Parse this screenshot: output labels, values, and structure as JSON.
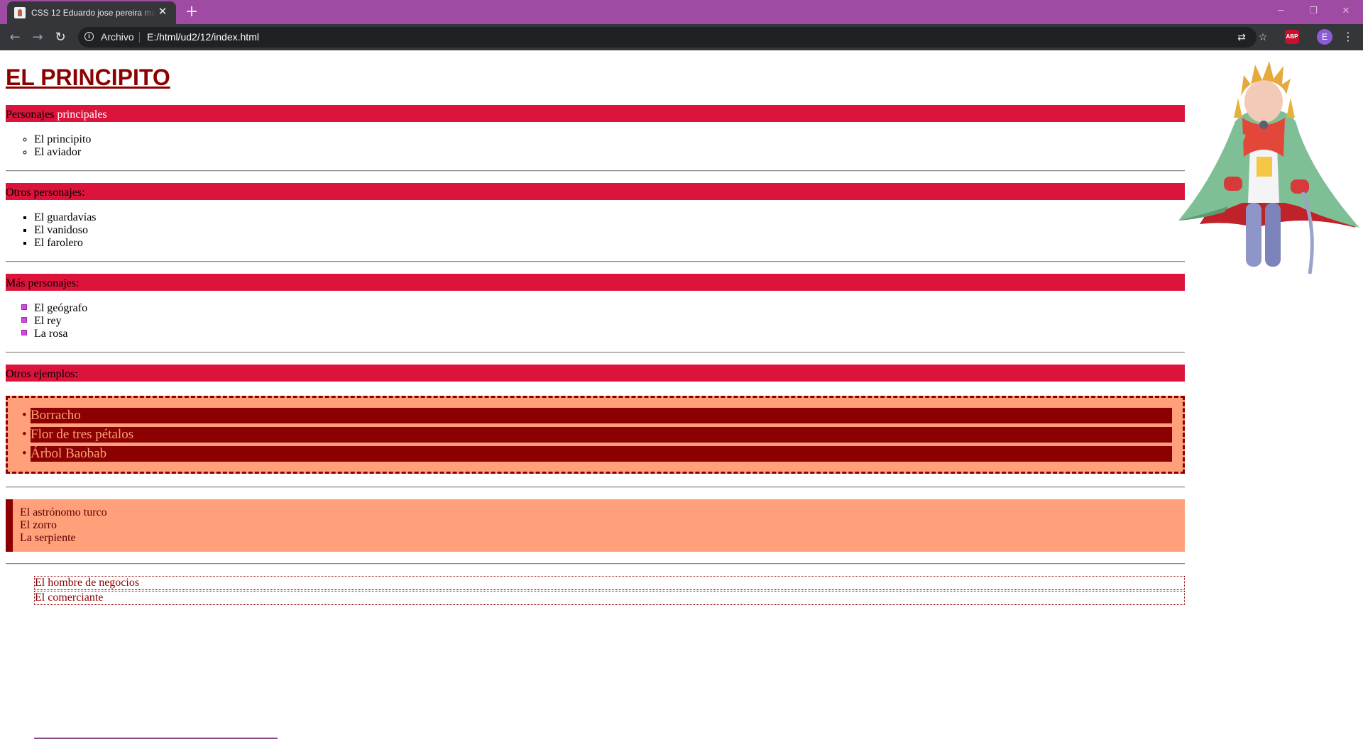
{
  "browser": {
    "tab_title": "CSS 12 Eduardo jose pereira macias",
    "tab_close": "✕",
    "new_tab": "+",
    "security_label": "Archivo",
    "url": "E:/html/ud2/12/index.html",
    "abp_label": "ABP",
    "profile_initial": "E",
    "icons": [
      "back-icon",
      "forward-icon",
      "reload-icon",
      "info-icon",
      "translate-icon",
      "star-icon",
      "abp-icon",
      "menu-icon"
    ]
  },
  "page": {
    "title": "EL PRINCIPITO",
    "sections": [
      {
        "label": "Personajes ",
        "highlight": "principales",
        "items": [
          "El principito",
          "El aviador"
        ]
      },
      {
        "label": "Otros personajes:",
        "items": [
          "El guardavías",
          "El vanidoso",
          "El farolero"
        ]
      },
      {
        "label": "Más personajes:",
        "items": [
          "El geógrafo",
          "El rey",
          "La rosa"
        ]
      },
      {
        "label": "Otros ejemplos:",
        "items": [
          "Borracho",
          "Flor de tres pétalos",
          "Árbol Baobab"
        ]
      }
    ],
    "left_border_box": [
      "El astrónomo turco",
      "El zorro",
      "La serpiente"
    ],
    "bordered_list": [
      "El hombre de negocios",
      "El comerciante"
    ]
  },
  "colors": {
    "titlebar": "#a04ba3",
    "section_bar": "#dc143c",
    "dark_red": "#8b0000",
    "salmon": "#ffa07a"
  }
}
